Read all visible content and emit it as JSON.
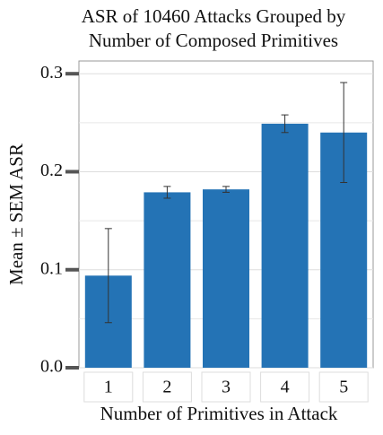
{
  "chart_data": {
    "type": "bar",
    "title": [
      "ASR of 10460 Attacks Grouped by",
      "Number of Composed Primitives"
    ],
    "y_label": "Mean ± SEM ASR",
    "x_label": "Number of Primitives in Attack",
    "categories": [
      "1",
      "2",
      "3",
      "4",
      "5"
    ],
    "values": [
      0.094,
      0.179,
      0.182,
      0.249,
      0.24
    ],
    "errors": [
      0.048,
      0.006,
      0.003,
      0.009,
      0.051
    ],
    "color": "#2473b5",
    "ylim": [
      0,
      0.313
    ],
    "yticks": [
      {
        "value": 0,
        "label": "0.0"
      },
      0.1,
      0.2,
      0.3
    ],
    "grid": true
  }
}
